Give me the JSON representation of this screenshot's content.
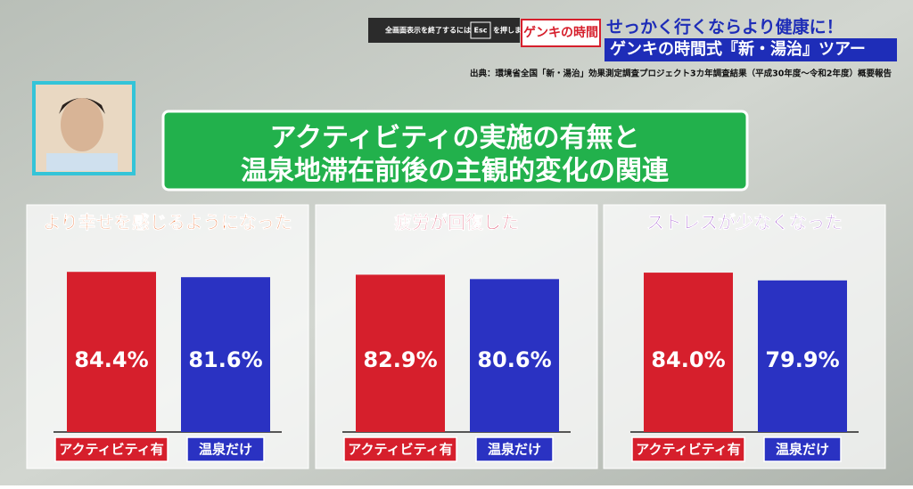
{
  "overlay": {
    "text_before": "全画面表示を終了するには",
    "key": "Esc",
    "text_after": "を押します"
  },
  "program": {
    "logo": "ゲンキの時間",
    "tagline": "せっかく行くならより健康に！",
    "segment": "ゲンキの時間式『新・湯治』ツアー"
  },
  "source": "出典：環境省全国「新・湯治」効果測定調査プロジェクト3カ年調査結果（平成30年度〜令和2年度）概要報告",
  "headline": [
    "アクティビティの実施の有無と",
    "温泉地滞在前後の主観的変化の関連"
  ],
  "chart_data": [
    {
      "type": "bar",
      "title": "より幸せを感じるようになった",
      "title_color": "#ea6a2a",
      "categories": [
        "アクティビティ有",
        "温泉だけ"
      ],
      "colors": [
        "#d61f2c",
        "#2a32c2"
      ],
      "values": [
        84.4,
        81.6
      ],
      "value_labels": [
        "84.4%",
        "81.6%"
      ]
    },
    {
      "type": "bar",
      "title": "疲労が回復した",
      "title_color": "#d8264a",
      "categories": [
        "アクティビティ有",
        "温泉だけ"
      ],
      "colors": [
        "#d61f2c",
        "#2a32c2"
      ],
      "values": [
        82.9,
        80.6
      ],
      "value_labels": [
        "82.9%",
        "80.6%"
      ]
    },
    {
      "type": "bar",
      "title": "ストレスが少なくなった",
      "title_color": "#8a2fc0",
      "categories": [
        "アクティビティ有",
        "温泉だけ"
      ],
      "colors": [
        "#d61f2c",
        "#2a32c2"
      ],
      "values": [
        84.0,
        79.9
      ],
      "value_labels": [
        "84.0%",
        "79.9%"
      ]
    }
  ]
}
